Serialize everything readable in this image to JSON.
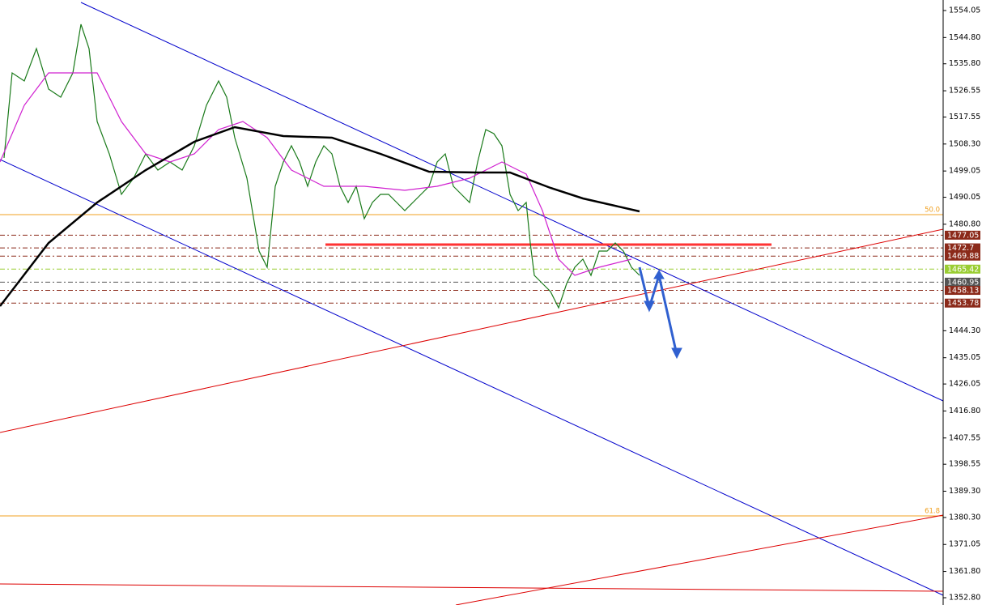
{
  "chart_data": {
    "type": "line",
    "xlim": [
      0,
      116.5
    ],
    "ylim": [
      1350.3,
      1557.66
    ],
    "yticks": [
      1554.05,
      {
        "value": 1544.8,
        "label": "1544.80"
      },
      {
        "value": 1535.8,
        "label": "1535.80"
      },
      1526.55,
      1517.55,
      {
        "value": 1508.3,
        "label": "1508.30"
      },
      1499.05,
      1490.05,
      {
        "value": 1480.8,
        "label": "1480.80"
      },
      {
        "value": 1444.3,
        "label": "1444.30"
      },
      1435.05,
      1426.05,
      {
        "value": 1416.8,
        "label": "1416.80"
      },
      1407.55,
      1398.55,
      {
        "value": 1389.3,
        "label": "1389.30"
      },
      {
        "value": 1380.3,
        "label": "1380.30"
      },
      1371.05,
      {
        "value": 1361.8,
        "label": "1361.80"
      },
      {
        "value": 1352.8,
        "label": "1352.80"
      }
    ],
    "series": [
      {
        "color": "#1a7a1a",
        "x": [
          0.5,
          1.5,
          3,
          4.5,
          6,
          7.5,
          9,
          10,
          11,
          12,
          13.5,
          15,
          16.5,
          18,
          19.5,
          21,
          22.5,
          24,
          25.5,
          27,
          28,
          29,
          30.5,
          32,
          33,
          34,
          35,
          36,
          37,
          38,
          39,
          40,
          41,
          42,
          43,
          44,
          45,
          46,
          47,
          48,
          49,
          50,
          51,
          52,
          53,
          54,
          55,
          56,
          57,
          58,
          59,
          60,
          61,
          62,
          63,
          64,
          65,
          65.5,
          66,
          67,
          68,
          69,
          70,
          71,
          72,
          73,
          74,
          75,
          76,
          77,
          78,
          79
        ],
        "values": [
          1503.53,
          1532.68,
          1529.9,
          1541.01,
          1527.13,
          1524.35,
          1532.68,
          1549.33,
          1541.01,
          1516.02,
          1504.92,
          1491.04,
          1496.59,
          1504.92,
          1499.37,
          1502.14,
          1499.37,
          1507.7,
          1521.57,
          1529.9,
          1524.35,
          1510.47,
          1496.59,
          1471.61,
          1466.06,
          1493.82,
          1502.14,
          1507.7,
          1502.14,
          1493.82,
          1502.14,
          1507.7,
          1504.92,
          1493.82,
          1488.26,
          1493.82,
          1482.71,
          1488.26,
          1491.04,
          1491.04,
          1488.26,
          1485.49,
          1488.26,
          1491.04,
          1493.82,
          1502.14,
          1504.92,
          1493.82,
          1491.04,
          1488.26,
          1502.14,
          1513.25,
          1511.86,
          1507.7,
          1491.04,
          1485.49,
          1488.26,
          1474.38,
          1463.28,
          1460.51,
          1457.73,
          1452.18,
          1460.51,
          1466.06,
          1468.83,
          1463.28,
          1471.61,
          1471.61,
          1474.38,
          1471.61,
          1466.06,
          1463.28
        ]
      },
      {
        "color": "#d020d0",
        "x": [
          0,
          3,
          6,
          12,
          15,
          18,
          21,
          24,
          27,
          30,
          33,
          36,
          40,
          45,
          50,
          54,
          58,
          62,
          65,
          67,
          69,
          71,
          74,
          78
        ],
        "values": [
          1502.14,
          1521.57,
          1532.68,
          1532.68,
          1516.02,
          1504.92,
          1502.14,
          1504.92,
          1513.25,
          1516.02,
          1510.47,
          1499.37,
          1493.82,
          1493.82,
          1492.43,
          1493.82,
          1496.59,
          1502.14,
          1497.98,
          1485.49,
          1468.83,
          1463.28,
          1466.06,
          1468.83
        ]
      },
      {
        "color": "#000000",
        "x": [
          0,
          6,
          12,
          18,
          24,
          29,
          35,
          41,
          47,
          53,
          59,
          63,
          68,
          72,
          79
        ],
        "values": [
          1452.73,
          1474.38,
          1488.26,
          1499.37,
          1509.08,
          1514.08,
          1511.03,
          1510.47,
          1504.92,
          1498.82,
          1498.54,
          1498.54,
          1493.27,
          1489.66,
          1485.21
        ]
      }
    ],
    "trendlines": [
      {
        "color": "#0000cc",
        "x": [
          10,
          116.5
        ],
        "values": [
          1556.83,
          1420.26
        ]
      },
      {
        "color": "#0000cc",
        "x": [
          0,
          116.5
        ],
        "values": [
          1502.97,
          1353.63
        ]
      },
      {
        "color": "#dd0000",
        "x": [
          0,
          116.5
        ],
        "values": [
          1409.43,
          1479.1
        ]
      },
      {
        "color": "#dd0000",
        "x": [
          56.3,
          116.5
        ],
        "values": [
          1350.3,
          1381.12
        ]
      },
      {
        "color": "#dd0000",
        "x": [
          0,
          116.5
        ],
        "values": [
          1357.52,
          1355.02
        ]
      }
    ],
    "resistance": {
      "color": "#ff3333",
      "x": [
        40.2,
        95.3
      ],
      "values": [
        1473.83,
        1473.83
      ]
    },
    "fib_levels": [
      {
        "price": 1484.1,
        "label": "50.0",
        "color": "#f0a020"
      },
      {
        "price": 1380.84,
        "label": "61.8",
        "color": "#f0a020"
      }
    ],
    "levels": [
      {
        "value": 1477.05,
        "color": "#8b2a1a"
      },
      {
        "value": 1472.7,
        "color": "#8b2a1a"
      },
      {
        "value": 1469.88,
        "color": "#8b2a1a"
      },
      {
        "value": 1465.42,
        "color": "#9acd32"
      },
      {
        "value": 1460.95,
        "color": "#555555"
      },
      {
        "value": 1458.13,
        "color": "#8b2a1a"
      },
      {
        "value": 1453.78,
        "color": "#8b2a1a"
      }
    ]
  }
}
